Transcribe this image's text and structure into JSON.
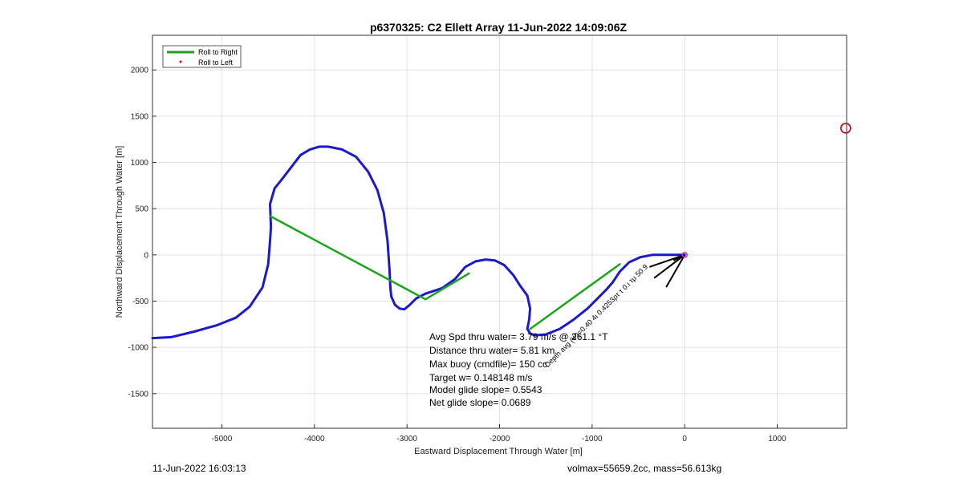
{
  "chart_data": {
    "type": "line",
    "title": "p6370325: C2 Ellett Array 11-Jun-2022 14:09:06Z",
    "xlabel": "Eastward Displacement Through Water [m]",
    "ylabel": "Northward Displacement Through Water [m]",
    "xlim": [
      -5750,
      1750
    ],
    "ylim": [
      -1875,
      2375
    ],
    "xticks": [
      -5000,
      -4000,
      -3000,
      -2000,
      -1000,
      0,
      1000
    ],
    "yticks": [
      2000,
      1500,
      1000,
      500,
      0,
      -500,
      -1000,
      -1500
    ],
    "grid": true,
    "legend": {
      "position": "top-left",
      "entries": [
        {
          "label": "Roll to Right",
          "color": "#1aa51a",
          "marker": "line"
        },
        {
          "label": "Roll to Left",
          "color": "#e00000",
          "marker": "dot"
        }
      ]
    },
    "series": [
      {
        "name": "track",
        "color": "#1a1acc",
        "x": [
          -5750,
          -5550,
          -5300,
          -5050,
          -4850,
          -4700,
          -4560,
          -4500,
          -4480,
          -4470,
          -4480,
          -4430,
          -4350,
          -4250,
          -4150,
          -4050,
          -3950,
          -3850,
          -3700,
          -3550,
          -3420,
          -3320,
          -3250,
          -3210,
          -3190,
          -3180,
          -3170,
          -3130,
          -3080,
          -3030,
          -2970,
          -2900,
          -2800,
          -2620,
          -2480,
          -2370,
          -2260,
          -2150,
          -2050,
          -1950,
          -1850,
          -1780,
          -1700,
          -1670,
          -1680,
          -1700,
          -1670,
          -1620,
          -1500,
          -1350,
          -1200,
          -1050,
          -950,
          -850,
          -780,
          -700,
          -600,
          -480,
          -350,
          -200,
          -80,
          0
        ],
        "y": [
          -900,
          -890,
          -830,
          -760,
          -680,
          -560,
          -350,
          -100,
          150,
          300,
          550,
          720,
          820,
          950,
          1080,
          1140,
          1170,
          1170,
          1140,
          1060,
          900,
          700,
          450,
          150,
          -150,
          -350,
          -450,
          -540,
          -580,
          -590,
          -540,
          -470,
          -420,
          -360,
          -260,
          -130,
          -70,
          -50,
          -60,
          -110,
          -220,
          -330,
          -440,
          -580,
          -700,
          -800,
          -850,
          -870,
          -860,
          -800,
          -700,
          -580,
          -480,
          -380,
          -300,
          -180,
          -80,
          -25,
          0,
          0,
          0,
          0
        ]
      },
      {
        "name": "roll right 1",
        "color": "#1aa51a",
        "x": [
          -4480,
          -2800
        ],
        "y": [
          420,
          -480
        ]
      },
      {
        "name": "roll right 2",
        "color": "#1aa51a",
        "x": [
          -2800,
          -2330
        ],
        "y": [
          -480,
          -200
        ]
      },
      {
        "name": "roll right 3",
        "color": "#1aa51a",
        "x": [
          -1670,
          -700
        ],
        "y": [
          -800,
          -100
        ]
      }
    ],
    "current_segments": [
      {
        "x": [
          0,
          -380
        ],
        "y": [
          0,
          -130
        ]
      },
      {
        "x": [
          0,
          -200
        ],
        "y": [
          0,
          -350
        ]
      },
      {
        "x": [
          0,
          -330
        ],
        "y": [
          0,
          -250
        ]
      },
      {
        "x": [
          0,
          -120
        ],
        "y": [
          0,
          -60
        ]
      }
    ],
    "marker_point": {
      "x": 1740,
      "y": 1370,
      "color": "#cc0000"
    },
    "rotated_annotation": "Depth avg (Ψ)=0.40 4ι 0.4253ρτ τ 0.ι τμ 50.9",
    "stats": [
      "Avg Spd thru water=  3.79 m/s @ 261.1 °T",
      "Distance thru water=  5.81 km",
      "Max buoy (cmdfile)= 150 cc",
      "Target w= 0.148148 m/s",
      "Model glide slope= 0.5543",
      "Net glide slope= 0.0689"
    ]
  },
  "footer": {
    "left": "11-Jun-2022 16:03:13",
    "right": "volmax=55659.2cc, mass=56.613kg"
  }
}
